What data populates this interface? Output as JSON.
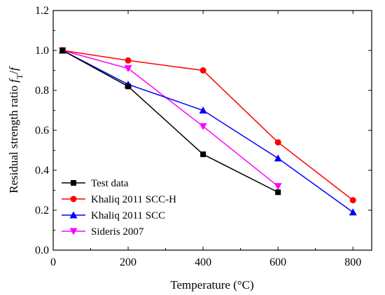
{
  "chart_data": {
    "type": "line",
    "title": "",
    "xlabel": "Temperature (°C)",
    "ylabel": "Residual strength ratio fᵀ/f",
    "ylabel_main": "Residual strength ratio ",
    "ylabel_italic_1": "f",
    "ylabel_sub": "T",
    "ylabel_slash": "/",
    "ylabel_italic_2": "f",
    "xlim": [
      0,
      850
    ],
    "ylim": [
      0.0,
      1.2
    ],
    "x_ticks": [
      "0",
      "200",
      "400",
      "600",
      "800"
    ],
    "y_ticks": [
      "0.0",
      "0.2",
      "0.4",
      "0.6",
      "0.8",
      "1.0",
      "1.2"
    ],
    "grid": false,
    "legend_position": "bottom-left",
    "series": [
      {
        "name": "Test data",
        "color": "#000000",
        "marker": "square",
        "x": [
          25,
          200,
          400,
          600
        ],
        "y": [
          1.0,
          0.82,
          0.48,
          0.29
        ]
      },
      {
        "name": "Khaliq 2011 SCC-H",
        "color": "#ff0000",
        "marker": "circle",
        "x": [
          25,
          200,
          400,
          600,
          800
        ],
        "y": [
          1.0,
          0.95,
          0.9,
          0.54,
          0.25
        ]
      },
      {
        "name": "Khaliq 2011 SCC",
        "color": "#0000ff",
        "marker": "triangle-up",
        "x": [
          25,
          200,
          400,
          600,
          800
        ],
        "y": [
          1.0,
          0.83,
          0.7,
          0.46,
          0.19
        ]
      },
      {
        "name": "Sideris 2007",
        "color": "#ff00ff",
        "marker": "triangle-down",
        "x": [
          25,
          200,
          400,
          600
        ],
        "y": [
          1.0,
          0.91,
          0.62,
          0.32
        ]
      }
    ]
  }
}
